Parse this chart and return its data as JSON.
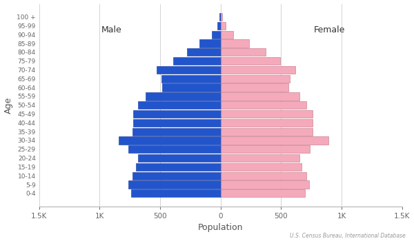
{
  "age_groups": [
    "0-4",
    "5-9",
    "10-14",
    "15-19",
    "20-24",
    "25-29",
    "30-34",
    "35-39",
    "40-44",
    "45-49",
    "50-54",
    "55-59",
    "60-64",
    "65-69",
    "70-74",
    "75-79",
    "80-84",
    "85-89",
    "90-94",
    "95-99",
    "100 +"
  ],
  "male": [
    740,
    760,
    730,
    700,
    680,
    760,
    840,
    730,
    720,
    720,
    680,
    620,
    480,
    490,
    530,
    390,
    280,
    175,
    70,
    28,
    10
  ],
  "female": [
    700,
    730,
    710,
    670,
    650,
    740,
    890,
    760,
    760,
    760,
    710,
    650,
    560,
    570,
    620,
    490,
    370,
    235,
    105,
    42,
    15
  ],
  "male_color": "#2255CC",
  "female_color": "#F4AABB",
  "male_edgecolor": "#1a3a99",
  "female_edgecolor": "#c07080",
  "background_color": "#ffffff",
  "xlabel": "Population",
  "ylabel": "Age",
  "male_label": "Male",
  "female_label": "Female",
  "source_text": "U.S. Census Bureau, International Database",
  "xlim": [
    -1500,
    1500
  ],
  "xtick_values": [
    -1500,
    -1000,
    -500,
    0,
    500,
    1000,
    1500
  ],
  "xtick_labels": [
    "1.5K",
    "1K",
    "500",
    "0",
    "500",
    "1K",
    "1.5K"
  ]
}
